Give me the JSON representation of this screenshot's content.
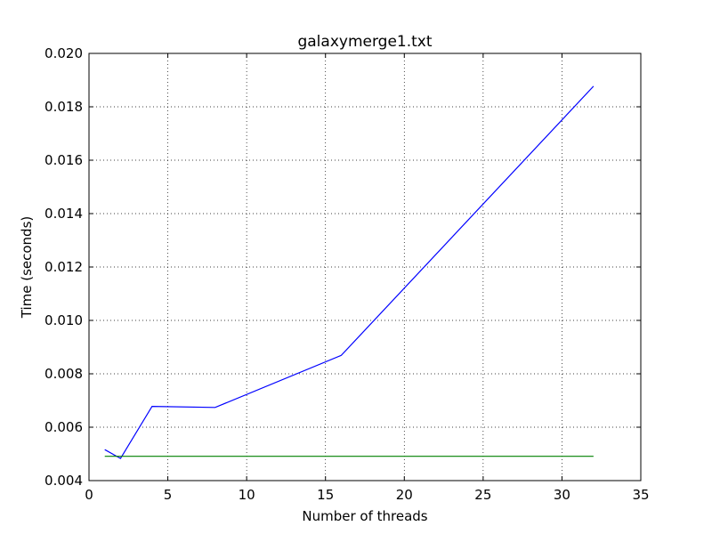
{
  "chart_data": {
    "type": "line",
    "title": "galaxymerge1.txt",
    "xlabel": "Number of threads",
    "ylabel": "Time (seconds)",
    "xlim": [
      0,
      35
    ],
    "ylim": [
      0.004,
      0.02
    ],
    "xticks": [
      0,
      5,
      10,
      15,
      20,
      25,
      30,
      35
    ],
    "xtick_labels": [
      "0",
      "5",
      "10",
      "15",
      "20",
      "25",
      "30",
      "35"
    ],
    "yticks": [
      0.004,
      0.006,
      0.008,
      0.01,
      0.012,
      0.014,
      0.016,
      0.018,
      0.02
    ],
    "ytick_labels": [
      "0.004",
      "0.006",
      "0.008",
      "0.010",
      "0.012",
      "0.014",
      "0.016",
      "0.018",
      "0.020"
    ],
    "grid": true,
    "series": [
      {
        "color": "#0000ff",
        "x": [
          1,
          2,
          4,
          8,
          16,
          32
        ],
        "y": [
          0.00516,
          0.00483,
          0.00678,
          0.00674,
          0.00869,
          0.01877
        ]
      },
      {
        "color": "#008000",
        "x": [
          1,
          32
        ],
        "y": [
          0.00491,
          0.00491
        ]
      }
    ]
  }
}
